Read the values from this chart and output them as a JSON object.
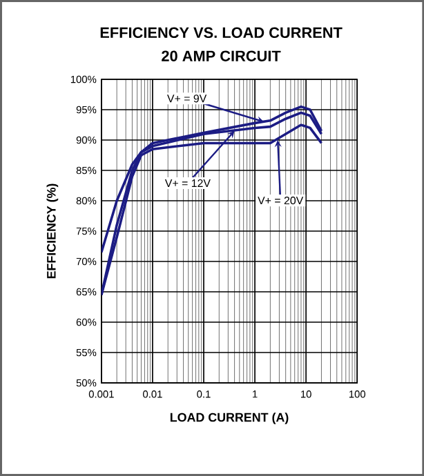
{
  "chart_data": {
    "type": "line",
    "title": "EFFICIENCY VS. LOAD CURRENT",
    "subtitle": "20 AMP CIRCUIT",
    "xlabel": "LOAD CURRENT (A)",
    "ylabel": "EFFICIENCY (%)",
    "log": "x",
    "grid": true,
    "marker": "none",
    "line_style": "solid",
    "xlim": [
      0.001,
      100
    ],
    "xticks": [
      0.001,
      0.01,
      0.1,
      1,
      10,
      100
    ],
    "ylim": [
      50,
      100
    ],
    "yticks": [
      {
        "value": 50,
        "label": "50%"
      },
      {
        "value": 55,
        "label": "55%"
      },
      {
        "value": 60,
        "label": "60%"
      },
      {
        "value": 65,
        "label": "65%"
      },
      {
        "value": 70,
        "label": "70%"
      },
      {
        "value": 75,
        "label": "75%"
      },
      {
        "value": 80,
        "label": "80%"
      },
      {
        "value": 85,
        "label": "85%"
      },
      {
        "value": 90,
        "label": "90%"
      },
      {
        "value": 95,
        "label": "95%"
      },
      {
        "value": 100,
        "label": "100%"
      }
    ],
    "x": [
      0.001,
      0.002,
      0.004,
      0.006,
      0.01,
      0.1,
      1,
      2,
      4,
      8,
      12,
      20
    ],
    "series": [
      {
        "color": "#1c1c84",
        "values": [
          71.5,
          80,
          86,
          88,
          89.5,
          91.2,
          92.8,
          93.2,
          94.5,
          95.5,
          95,
          91.5
        ]
      },
      {
        "color": "#1c1c84",
        "values": [
          64.5,
          76,
          85,
          88,
          89,
          91,
          92,
          92.2,
          93.5,
          94.5,
          94,
          91
        ]
      },
      {
        "color": "#1c1c84",
        "values": [
          64.5,
          74,
          84,
          87.5,
          88.5,
          89.5,
          89.5,
          89.5,
          91,
          92.5,
          92,
          89.5
        ]
      }
    ],
    "annotations": [
      {
        "text": "V+ = 9V",
        "x": 1.5,
        "y": 93
      },
      {
        "text": "V+ = 12V",
        "x": 0.4,
        "y": 91.5
      },
      {
        "text": "V+ = 20V",
        "x": 2.8,
        "y": 90
      }
    ]
  }
}
